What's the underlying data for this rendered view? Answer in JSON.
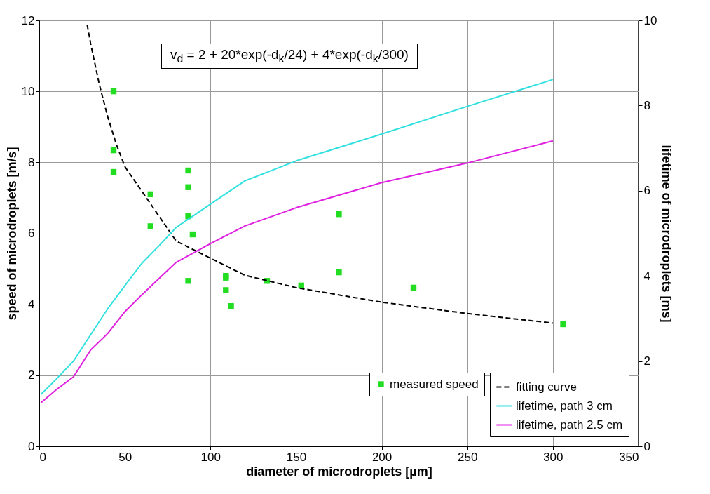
{
  "chart_data": {
    "type": "scatter",
    "xlabel": "diameter of microdroplets [µm]",
    "ylabel": "speed of microdroplets [m/s]",
    "y2label": "lifetime of microdroplets [ms]",
    "xlim": [
      0,
      350
    ],
    "xticks": [
      0,
      50,
      100,
      150,
      200,
      250,
      300,
      350
    ],
    "ylim": [
      0,
      12
    ],
    "yticks": [
      0,
      2,
      4,
      6,
      8,
      10,
      12
    ],
    "y2lim": [
      0,
      10
    ],
    "y2ticks": [
      0,
      2,
      4,
      6,
      8,
      10
    ],
    "grid": true,
    "legend": "bottom right",
    "annotations": [
      "v$_{d}$ = 2 + 20*exp(-d$_{k}$/24) + 4*exp(-d$_{k}$/300)"
    ],
    "series": [
      {
        "name": "measured speed",
        "marker": "square",
        "color": "#22dd22",
        "x": [
          43.4,
          43.4,
          43.4,
          65,
          65,
          87,
          87,
          87,
          89.6,
          87,
          109,
          109,
          109,
          112,
          133,
          153,
          175,
          175,
          218.6,
          306
        ],
        "values": [
          10.0,
          8.34,
          7.73,
          7.1,
          6.2,
          7.77,
          7.3,
          6.48,
          5.97,
          4.66,
          4.8,
          4.75,
          4.4,
          3.95,
          4.66,
          4.53,
          4.9,
          6.54,
          4.47,
          3.44
        ]
      },
      {
        "name": "fitting curve",
        "type": "line",
        "marker": "none",
        "color": "#000000",
        "line_style": "dashed",
        "x": [
          28,
          30,
          35,
          40,
          45,
          50,
          80,
          120,
          150,
          200,
          250,
          300
        ],
        "values": [
          11.87,
          11.35,
          10.21,
          9.28,
          8.51,
          7.88,
          5.78,
          4.82,
          4.47,
          4.06,
          3.74,
          3.47
        ]
      },
      {
        "name": "lifetime, path 3 cm",
        "type": "line",
        "line_style": "solid",
        "marker": "none",
        "axis": "y2",
        "color": "#33e0e0",
        "x": [
          1,
          10,
          20,
          30,
          40,
          50,
          60,
          70,
          80,
          120,
          150,
          200,
          250,
          300
        ],
        "values": [
          1.22,
          1.58,
          2.0,
          2.62,
          3.23,
          3.77,
          4.3,
          4.71,
          5.14,
          6.23,
          6.7,
          7.33,
          7.98,
          8.61
        ]
      },
      {
        "name": "lifetime, path 2.5 cm",
        "type": "line",
        "line_style": "solid",
        "marker": "none",
        "axis": "y2",
        "color": "#e020e0",
        "x": [
          1,
          10,
          20,
          30,
          40,
          50,
          60,
          70,
          80,
          100,
          120,
          150,
          200,
          250,
          300
        ],
        "values": [
          1.02,
          1.33,
          1.63,
          2.26,
          2.65,
          3.16,
          3.56,
          3.94,
          4.32,
          4.76,
          5.17,
          5.6,
          6.19,
          6.65,
          7.17
        ]
      }
    ]
  }
}
